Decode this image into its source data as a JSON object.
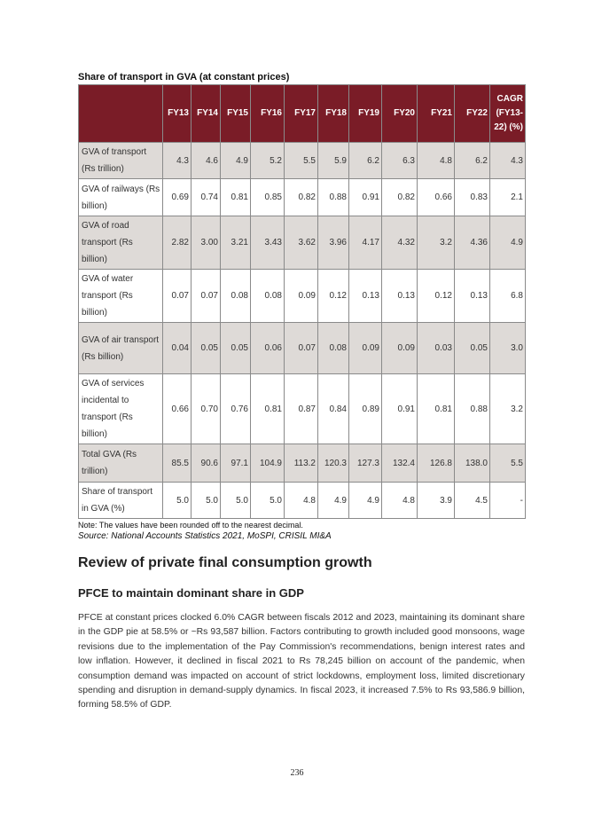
{
  "caption": "Share of transport in GVA (at constant prices)",
  "table": {
    "headers": [
      "",
      "FY13",
      "FY14",
      "FY15",
      "FY16",
      "FY17",
      "FY18",
      "FY19",
      "FY20",
      "FY21",
      "FY22",
      "CAGR (FY13-22) (%)"
    ],
    "rows": [
      {
        "label": "GVA of transport (Rs trillion)",
        "values": [
          "4.3",
          "4.6",
          "4.9",
          "5.2",
          "5.5",
          "5.9",
          "6.2",
          "6.3",
          "4.8",
          "6.2",
          "4.3"
        ]
      },
      {
        "label": "GVA of railways (Rs billion)",
        "values": [
          "0.69",
          "0.74",
          "0.81",
          "0.85",
          "0.82",
          "0.88",
          "0.91",
          "0.82",
          "0.66",
          "0.83",
          "2.1"
        ]
      },
      {
        "label": "GVA of road transport (Rs billion)",
        "values": [
          "2.82",
          "3.00",
          "3.21",
          "3.43",
          "3.62",
          "3.96",
          "4.17",
          "4.32",
          "3.2",
          "4.36",
          "4.9"
        ]
      },
      {
        "label": "GVA of water transport (Rs billion)",
        "values": [
          "0.07",
          "0.07",
          "0.08",
          "0.08",
          "0.09",
          "0.12",
          "0.13",
          "0.13",
          "0.12",
          "0.13",
          "6.8"
        ]
      },
      {
        "label": "GVA of air transport (Rs billion)",
        "values": [
          "0.04",
          "0.05",
          "0.05",
          "0.06",
          "0.07",
          "0.08",
          "0.09",
          "0.09",
          "0.03",
          "0.05",
          "3.0"
        ]
      },
      {
        "label": "GVA of services incidental to transport (Rs billion)",
        "values": [
          "0.66",
          "0.70",
          "0.76",
          "0.81",
          "0.87",
          "0.84",
          "0.89",
          "0.91",
          "0.81",
          "0.88",
          "3.2"
        ]
      },
      {
        "label": "Total GVA (Rs trillion)",
        "values": [
          "85.5",
          "90.6",
          "97.1",
          "104.9",
          "113.2",
          "120.3",
          "127.3",
          "132.4",
          "126.8",
          "138.0",
          "5.5"
        ]
      },
      {
        "label": "Share of transport in GVA (%)",
        "values": [
          "5.0",
          "5.0",
          "5.0",
          "5.0",
          "4.8",
          "4.9",
          "4.9",
          "4.8",
          "3.9",
          "4.5",
          "-"
        ]
      }
    ]
  },
  "note": "Note: The values have been rounded off to the nearest decimal.",
  "source": "Source: National Accounts Statistics 2021, MoSPI, CRISIL MI&A",
  "section_title": "Review of private final consumption growth",
  "subsection_title": "PFCE to maintain dominant share in GDP",
  "paragraph": "PFCE at constant prices clocked 6.0% CAGR between fiscals 2012 and 2023, maintaining its dominant share in the GDP pie at 58.5% or ~Rs 93,587 billion. Factors contributing to growth included good monsoons, wage revisions due to the implementation of the Pay Commission's recommendations, benign interest rates and low inflation. However, it declined in fiscal 2021 to Rs 78,245 billion on account of the pandemic, when consumption demand was impacted on account of strict lockdowns, employment loss, limited discretionary spending and disruption in demand-supply dynamics. In fiscal 2023, it increased 7.5% to Rs 93,586.9 billion, forming 58.5% of GDP.",
  "page_number": "236"
}
